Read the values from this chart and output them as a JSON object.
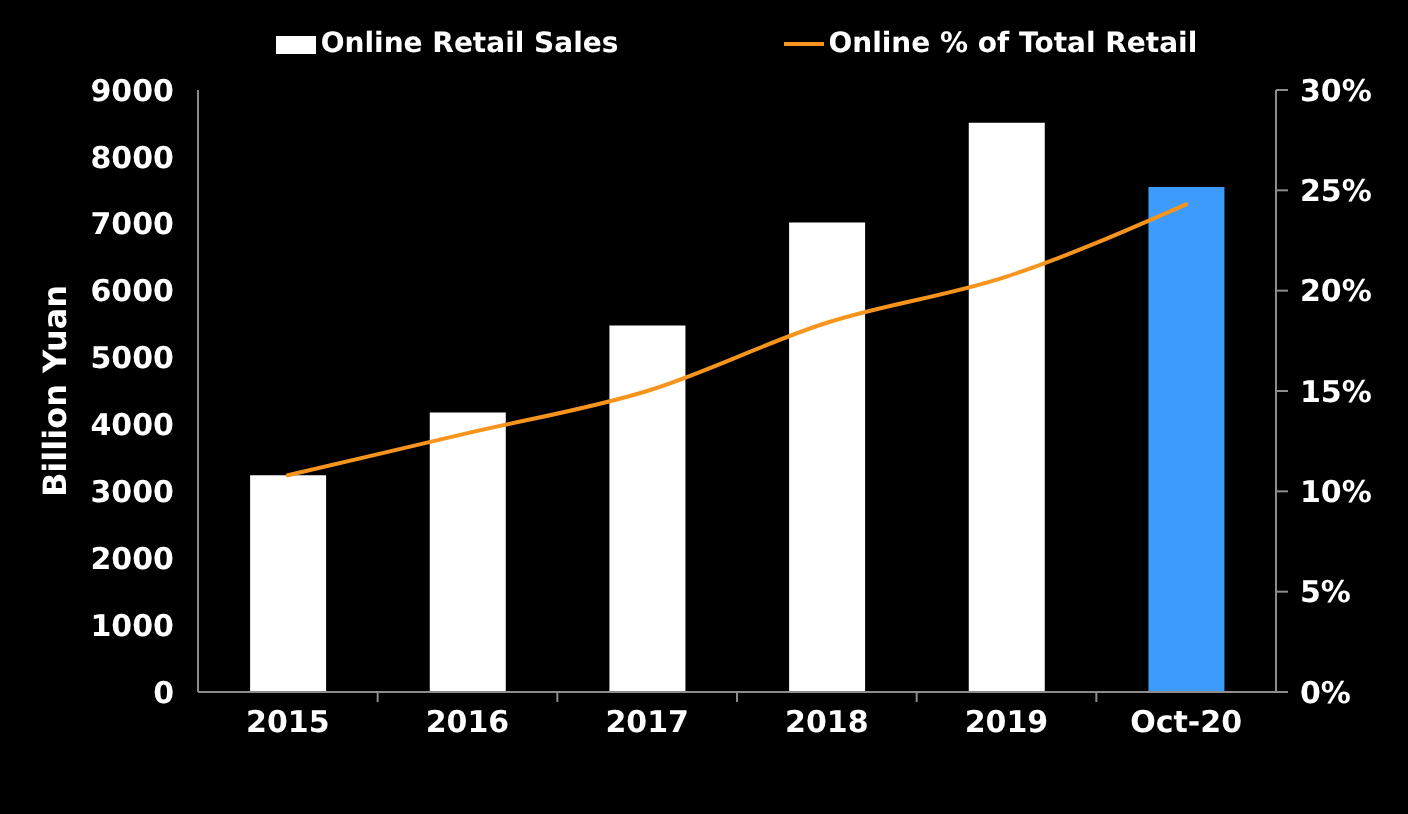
{
  "chart_data": {
    "type": "bar",
    "categories": [
      "2015",
      "2016",
      "2017",
      "2018",
      "2019",
      "Oct-20"
    ],
    "ylabel": "Billion Yuan",
    "series": [
      {
        "name": "Online Retail Sales",
        "color": "#ffffff",
        "colors": [
          "#ffffff",
          "#ffffff",
          "#ffffff",
          "#ffffff",
          "#ffffff",
          "#3d9bfc"
        ],
        "values": [
          3240,
          4180,
          5480,
          7020,
          8510,
          7550
        ]
      },
      {
        "name": "Online % of Total Retail",
        "type": "line",
        "axis": "y2",
        "color": "#f7941d",
        "values": [
          10.8,
          12.9,
          15.0,
          18.4,
          20.7,
          24.3
        ]
      }
    ],
    "ylim": [
      0,
      9000
    ],
    "yticks": [
      0,
      1000,
      2000,
      3000,
      4000,
      5000,
      6000,
      7000,
      8000,
      9000
    ],
    "y2lim": [
      0,
      30
    ],
    "y2ticks": [
      {
        "value": 0,
        "label": "0%"
      },
      {
        "value": 5,
        "label": "5%"
      },
      {
        "value": 10,
        "label": "10%"
      },
      {
        "value": 15,
        "label": "15%"
      },
      {
        "value": 20,
        "label": "20%"
      },
      {
        "value": 25,
        "label": "25%"
      },
      {
        "value": 30,
        "label": "30%"
      }
    ],
    "legend": "top",
    "marker": "none"
  }
}
